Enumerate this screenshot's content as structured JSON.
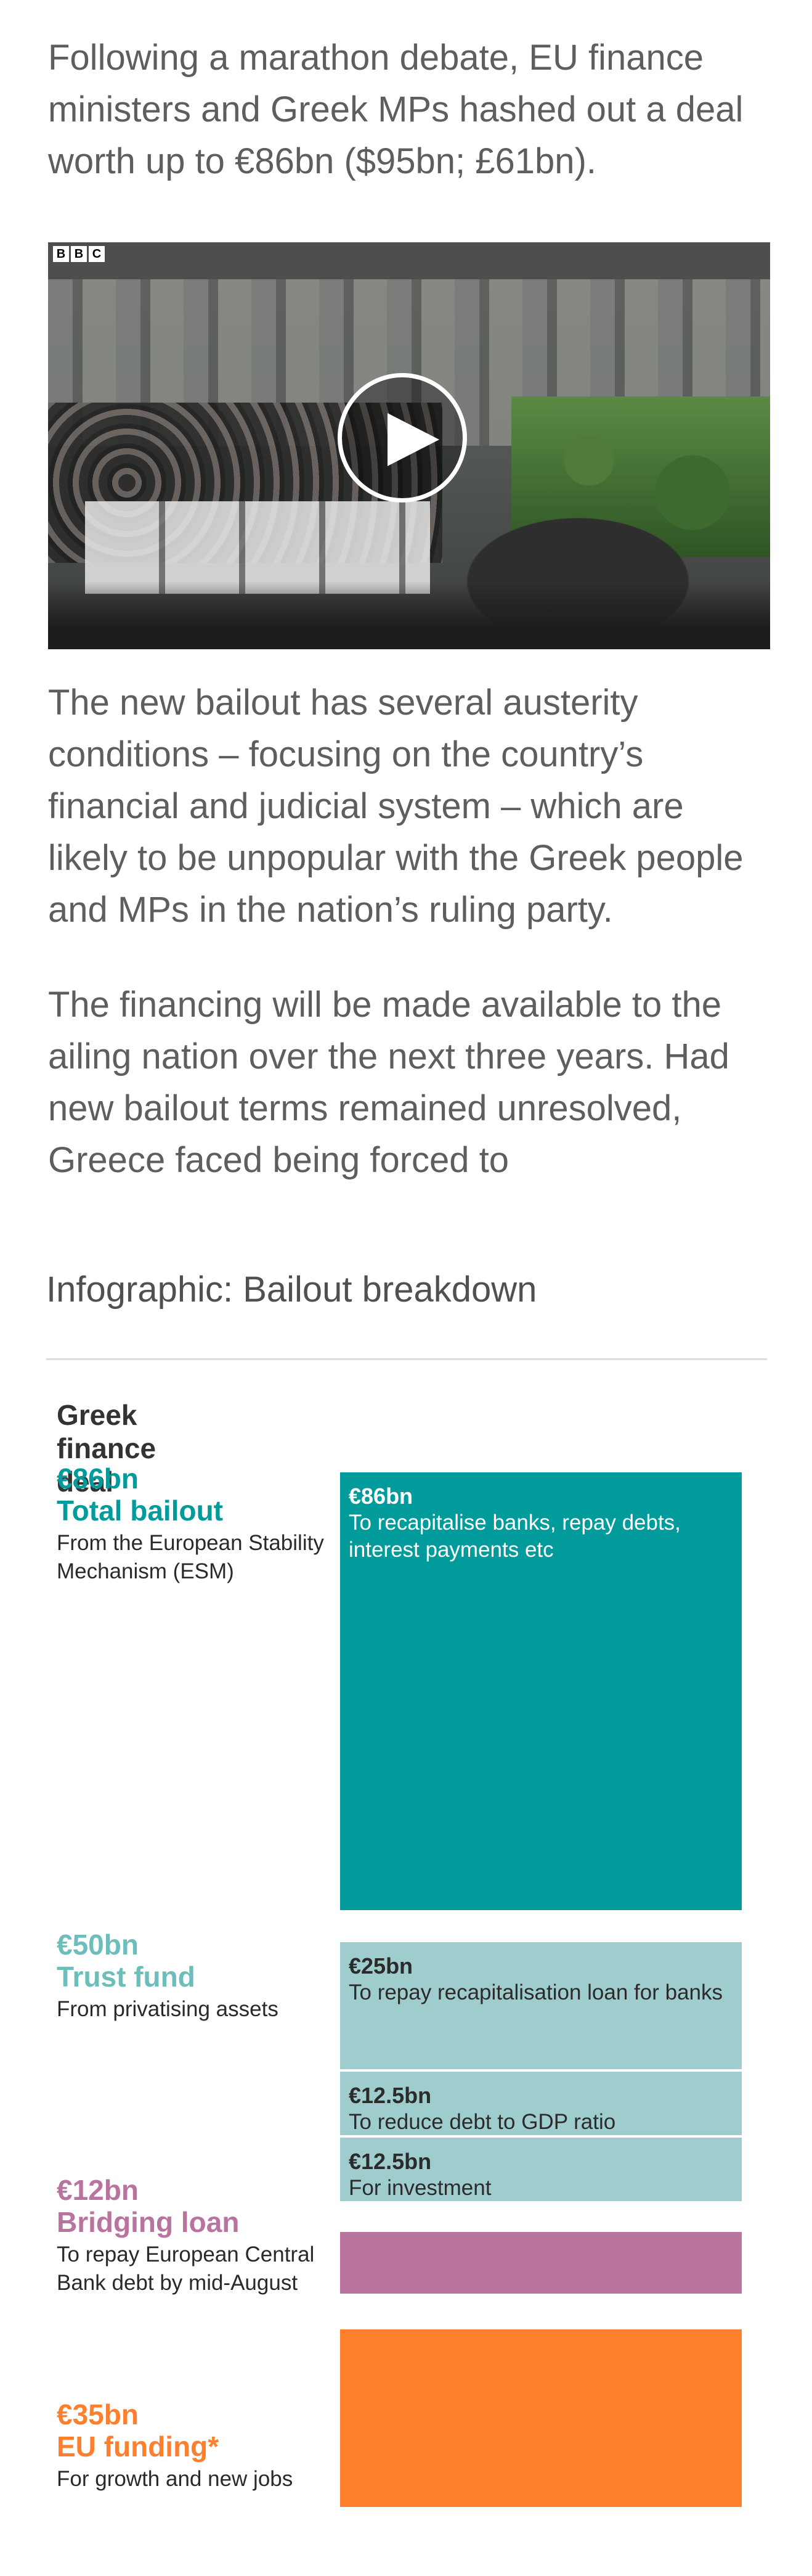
{
  "article": {
    "intro": "Following a marathon debate, EU finance ministers and Greek MPs hashed out a deal worth up to €86bn ($95bn; £61bn).",
    "paragraph_2": "The new bailout has several austerity conditions – focusing on the country’s financial and judicial system – which are likely to be unpopular with the Greek people and MPs in the nation’s ruling party.",
    "paragraph_3": "The financing will be made available to the ailing nation over the next three years. Had new bailout terms remained unresolved, Greece faced being forced to"
  },
  "video": {
    "logo_letters": [
      "B",
      "B",
      "C"
    ],
    "play_icon": "play-icon"
  },
  "infographic": {
    "heading": "Infographic: Bailout breakdown",
    "title": "Greek finance deal",
    "colors": {
      "teal": "#009b9a",
      "light_teal": "#9fcccc",
      "mauve": "#b9739f",
      "orange": "#fe7f2d",
      "trust_label": "#6dbdbc"
    },
    "groups": [
      {
        "amount": "€86bn",
        "name": "Total bailout",
        "desc": "From the European Stability Mechanism (ESM)"
      },
      {
        "amount": "€50bn",
        "name": "Trust fund",
        "desc": "From privatising assets"
      },
      {
        "amount": "€12bn",
        "name": "Bridging loan",
        "desc": "To repay European Central Bank debt by mid-August"
      },
      {
        "amount": "€35bn",
        "name": "EU funding*",
        "desc": "For growth and new jobs"
      }
    ],
    "blocks": [
      {
        "amount": "€86bn",
        "desc": "To recapitalise banks, repay debts, interest payments etc",
        "value_bn": 86
      },
      {
        "amount": "€25bn",
        "desc": "To repay recapitalisation loan for banks",
        "value_bn": 25
      },
      {
        "amount": "€12.5bn",
        "desc": "To reduce debt to GDP ratio",
        "value_bn": 12.5
      },
      {
        "amount": "€12.5bn",
        "desc": "For investment",
        "value_bn": 12.5
      },
      {
        "amount": "",
        "desc": "",
        "value_bn": 12
      },
      {
        "amount": "",
        "desc": "",
        "value_bn": 35
      }
    ]
  }
}
